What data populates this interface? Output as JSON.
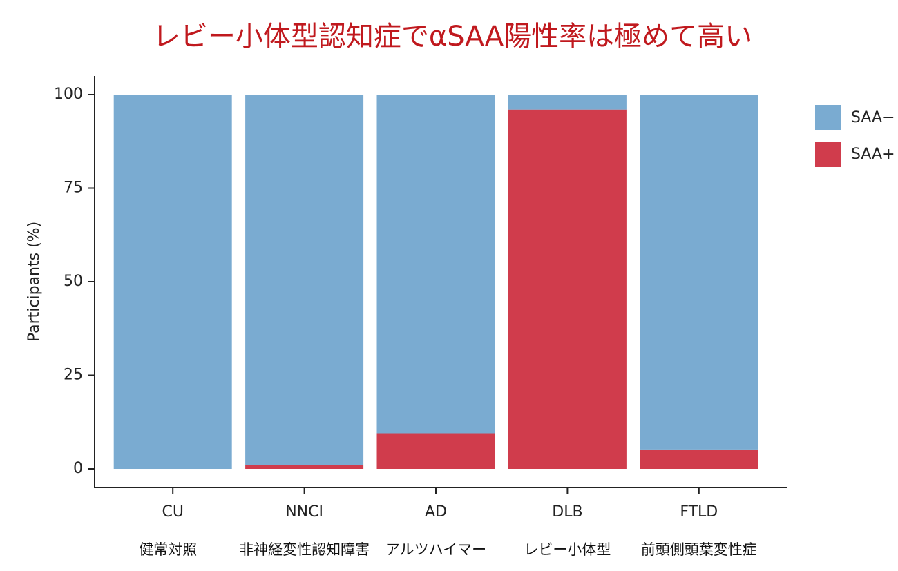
{
  "chart_data": {
    "type": "stacked-bar",
    "title": "レビー小体型認知症でαSAA陽性率は極めて高い",
    "y_label": "Participants (%)",
    "categories": [
      "CU",
      "NNCI",
      "AD",
      "DLB",
      "FTLD"
    ],
    "category_notes": [
      "健常対照",
      "非神経変性認知障害",
      "アルツハイマー",
      "レビー小体型",
      "前頭側頭葉変性症"
    ],
    "series": [
      {
        "name": "SAA−",
        "color": "#7aabd1",
        "values": [
          100,
          99,
          90.5,
          4,
          95
        ]
      },
      {
        "name": "SAA+",
        "color": "#d03c4c",
        "values": [
          0,
          1,
          9.5,
          96,
          5
        ]
      }
    ],
    "ylim": [
      0,
      100
    ],
    "yticks": [
      0,
      25,
      50,
      75,
      100
    ],
    "legend": "right"
  }
}
